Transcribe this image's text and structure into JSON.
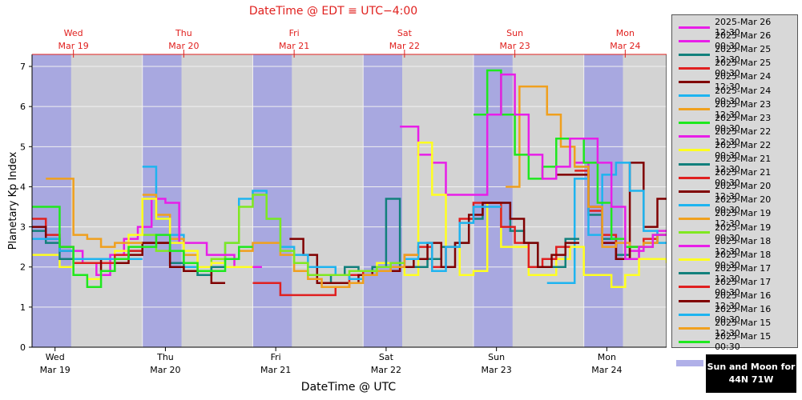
{
  "top_title": "DateTime @ EDT ≡ UTC−4:00",
  "bottom_title": "DateTime @ UTC",
  "sun_moon_label_line1": "Sun and Moon for",
  "sun_moon_label_line2": "44N 71W",
  "colors": {
    "plot_bg": "#d3d3d3",
    "night_band": "#a8a8e0",
    "top_axis": "#e0201e",
    "grid": "#f0f0f0"
  },
  "chart_data": {
    "type": "line",
    "title": "",
    "xlabel": "DateTime @ UTC",
    "ylabel": "Planetary Kp Index",
    "ylim": [
      0,
      7.3
    ],
    "yticks": [
      0,
      1,
      2,
      3,
      4,
      5,
      6,
      7
    ],
    "xlim_hours": [
      0,
      138
    ],
    "x_ticks_bottom": [
      {
        "day": "Wed",
        "date": "Mar 19",
        "hour": 5
      },
      {
        "day": "Thu",
        "date": "Mar 20",
        "hour": 29
      },
      {
        "day": "Fri",
        "date": "Mar 21",
        "hour": 53
      },
      {
        "day": "Sat",
        "date": "Mar 22",
        "hour": 77
      },
      {
        "day": "Sun",
        "date": "Mar 23",
        "hour": 101
      },
      {
        "day": "Mon",
        "date": "Mar 24",
        "hour": 125
      }
    ],
    "x_ticks_top": [
      {
        "day": "Wed",
        "date": "Mar 19",
        "hour": 9
      },
      {
        "day": "Thu",
        "date": "Mar 20",
        "hour": 33
      },
      {
        "day": "Fri",
        "date": "Mar 21",
        "hour": 57
      },
      {
        "day": "Sat",
        "date": "Mar 22",
        "hour": 81
      },
      {
        "day": "Sun",
        "date": "Mar 23",
        "hour": 105
      },
      {
        "day": "Mon",
        "date": "Mar 24",
        "hour": 129
      }
    ],
    "night_bands": [
      [
        0,
        8.5
      ],
      [
        24,
        32.5
      ],
      [
        48,
        56.5
      ],
      [
        72,
        80.5
      ],
      [
        96,
        104.5
      ],
      [
        120,
        128.5
      ]
    ],
    "legend_placement": "right",
    "series": [
      {
        "name": "2025-Mar 26 12:30",
        "color": "#e81ee8",
        "x": [
          118,
          121,
          124,
          127,
          130,
          133,
          136,
          138
        ],
        "y": [
          4.6,
          3.5,
          2.6,
          2.2,
          2.4,
          2.6,
          2.9,
          2.9
        ]
      },
      {
        "name": "2025-Mar 26 00:30",
        "color": "#e81ee8",
        "x": [],
        "y": []
      },
      {
        "name": "2025-Mar 25 12:30",
        "color": "#12807c",
        "x": [
          118,
          121,
          124,
          127,
          130,
          133,
          136,
          138
        ],
        "y": [
          4.5,
          3.3,
          2.7,
          2.3,
          2.5,
          2.6,
          2.8,
          2.8
        ]
      },
      {
        "name": "2025-Mar 25 00:30",
        "color": "#e02020",
        "x": [
          118,
          121,
          124,
          127,
          130,
          133,
          136,
          138
        ],
        "y": [
          4.4,
          3.4,
          2.8,
          2.2,
          2.5,
          2.7,
          2.8,
          2.8
        ]
      },
      {
        "name": "2025-Mar 24 12:30",
        "color": "#800000",
        "x": [
          114,
          118,
          121,
          124,
          127,
          130,
          133,
          136,
          138
        ],
        "y": [
          4.3,
          4.3,
          3.5,
          2.6,
          2.2,
          4.6,
          3.0,
          3.7,
          3.7
        ]
      },
      {
        "name": "2025-Mar 24 00:30",
        "color": "#1eb4f0",
        "x": [
          112,
          115,
          118,
          121,
          124,
          127,
          130,
          133,
          136,
          138
        ],
        "y": [
          1.6,
          1.6,
          4.2,
          2.8,
          4.3,
          4.6,
          3.9,
          2.9,
          2.6,
          2.6
        ]
      },
      {
        "name": "2025-Mar 23 12:30",
        "color": "#f0a01e",
        "x": [
          103,
          106,
          109,
          112,
          115,
          118,
          121,
          124,
          127,
          130,
          133,
          136,
          138
        ],
        "y": [
          4.0,
          6.5,
          6.5,
          5.8,
          5.0,
          4.5,
          3.5,
          2.5,
          2.6,
          2.5,
          2.6,
          2.8,
          2.8
        ]
      },
      {
        "name": "2025-Mar 23 00:30",
        "color": "#1ee81e",
        "x": [
          96,
          99,
          102,
          105,
          108,
          111,
          114,
          117,
          120,
          123,
          126,
          129,
          132,
          135,
          138
        ],
        "y": [
          5.8,
          6.9,
          5.8,
          4.8,
          4.2,
          4.5,
          5.2,
          5.2,
          4.6,
          3.6,
          2.7,
          2.5,
          2.5,
          2.8,
          2.8
        ]
      },
      {
        "name": "2025-Mar 22 12:30",
        "color": "#e81ee8",
        "x": [
          80,
          84,
          87,
          90,
          93,
          96,
          99,
          102,
          105,
          108,
          111,
          114,
          117,
          120,
          123,
          126,
          129,
          132,
          135,
          138
        ],
        "y": [
          5.5,
          4.8,
          4.6,
          3.8,
          3.8,
          3.8,
          5.8,
          6.8,
          5.8,
          4.8,
          4.2,
          4.5,
          5.2,
          5.2,
          4.6,
          3.5,
          2.2,
          2.5,
          2.8,
          2.8
        ]
      },
      {
        "name": "2025-Mar 22 00:30",
        "color": "#ffff20",
        "x": [
          72,
          75,
          78,
          81,
          84,
          87,
          90,
          93,
          96,
          99,
          102,
          105,
          108,
          111,
          114,
          117,
          120,
          123,
          126,
          129,
          132,
          135,
          138
        ],
        "y": [
          1.8,
          2.1,
          2.0,
          1.8,
          5.1,
          3.8,
          2.5,
          1.8,
          1.9,
          3.6,
          2.5,
          2.5,
          1.8,
          1.8,
          2.2,
          2.5,
          1.8,
          1.8,
          1.5,
          1.8,
          2.2,
          2.2,
          2.1
        ]
      },
      {
        "name": "2025-Mar 21 12:30",
        "color": "#12807c",
        "x": [
          62,
          65,
          68,
          71,
          74,
          77,
          80,
          83,
          86,
          89,
          92,
          95,
          98,
          101,
          104,
          107,
          110,
          113,
          116
        ],
        "y": [
          1.6,
          1.8,
          2.0,
          1.9,
          2.0,
          3.7,
          2.0,
          2.0,
          2.2,
          2.5,
          2.6,
          3.2,
          3.6,
          3.6,
          2.9,
          2.6,
          2.0,
          2.0,
          2.7
        ]
      },
      {
        "name": "2025-Mar 21 00:30",
        "color": "#e02020",
        "x": [
          48,
          51,
          54,
          57,
          60,
          63,
          66,
          69,
          72,
          75,
          78,
          81,
          84,
          87,
          90,
          93,
          96,
          99,
          102,
          105,
          108,
          111,
          114
        ],
        "y": [
          1.6,
          1.6,
          1.3,
          1.3,
          1.3,
          1.3,
          1.5,
          1.8,
          1.9,
          1.9,
          2.0,
          2.3,
          2.5,
          2.0,
          2.5,
          3.2,
          3.6,
          3.6,
          3.0,
          2.6,
          2.0,
          2.2,
          2.5
        ]
      },
      {
        "name": "2025-Mar 20 12:30",
        "color": "#800000",
        "x": [
          56,
          59,
          62,
          65,
          68,
          71,
          74,
          77,
          80,
          83,
          86,
          89,
          92,
          95,
          98,
          101,
          104,
          107,
          110,
          113,
          116
        ],
        "y": [
          2.7,
          2.3,
          1.6,
          1.6,
          1.6,
          1.8,
          1.9,
          1.9,
          2.0,
          2.2,
          2.6,
          2.0,
          2.6,
          3.3,
          3.6,
          3.6,
          3.2,
          2.6,
          2.0,
          2.3,
          2.6
        ]
      },
      {
        "name": "2025-Mar 20 00:30",
        "color": "#1eb4f0",
        "x": [
          24,
          27,
          30,
          33,
          36,
          39,
          42,
          45,
          48,
          51,
          54,
          57,
          60,
          63,
          66,
          69,
          72,
          75,
          78,
          81,
          84,
          87,
          90,
          93,
          96,
          99
        ],
        "y": [
          4.5,
          3.2,
          2.8,
          2.0,
          1.8,
          2.0,
          2.6,
          3.7,
          3.9,
          3.2,
          2.5,
          2.3,
          2.0,
          2.0,
          1.8,
          1.7,
          1.8,
          1.9,
          2.1,
          2.2,
          2.6,
          1.9,
          2.5,
          3.1,
          3.5,
          3.5
        ]
      },
      {
        "name": "2025-Mar 19 12:30",
        "color": "#f0a01e",
        "x": [
          24,
          27,
          30,
          33,
          36,
          39,
          42,
          45,
          48,
          51,
          54,
          57,
          60,
          63,
          66,
          69,
          72,
          75,
          78,
          81
        ],
        "y": [
          3.8,
          3.3,
          2.7,
          2.3,
          1.9,
          2.0,
          2.2,
          2.4,
          2.6,
          2.6,
          2.3,
          1.9,
          1.7,
          1.5,
          1.5,
          1.6,
          1.8,
          1.9,
          2.0,
          2.3
        ]
      },
      {
        "name": "2025-Mar 19 00:30",
        "color": "#80e820",
        "x": [
          24,
          27,
          30,
          33,
          36,
          39,
          42,
          45,
          48,
          51,
          54,
          57,
          60,
          63,
          66,
          69,
          72,
          75,
          78
        ],
        "y": [
          2.8,
          2.4,
          2.1,
          1.9,
          1.8,
          2.2,
          2.6,
          3.5,
          3.8,
          3.2,
          2.4,
          2.1,
          1.8,
          1.8,
          1.8,
          1.9,
          1.9,
          2.0,
          2.1
        ]
      },
      {
        "name": "2025-Mar 18 12:30",
        "color": "#e81ee8",
        "x": [
          8,
          11,
          14,
          17,
          20,
          23,
          26,
          29,
          32,
          35,
          38,
          41,
          44,
          47
        ],
        "y": [
          2.4,
          2.1,
          1.8,
          2.3,
          2.7,
          3.0,
          3.7,
          3.6,
          2.6,
          2.6,
          2.3,
          2.3,
          2.0,
          2.0
        ]
      },
      {
        "name": "2025-Mar 18 00:30",
        "color": "#ffff20",
        "x": [
          0,
          3,
          6,
          9,
          12,
          15,
          18,
          21,
          24,
          27,
          30,
          33,
          36,
          39,
          42,
          45
        ],
        "y": [
          2.3,
          2.3,
          2.0,
          1.8,
          1.7,
          1.9,
          2.4,
          2.8,
          3.7,
          3.2,
          2.6,
          2.4,
          2.0,
          2.1,
          2.0,
          2.0
        ]
      },
      {
        "name": "2025-Mar 17 12:30",
        "color": "#12807c",
        "x": [
          0,
          3,
          6,
          9,
          12,
          15,
          18,
          21,
          24,
          27,
          30,
          33,
          36,
          39
        ],
        "y": [
          2.9,
          2.6,
          2.2,
          2.2,
          2.2,
          2.2,
          2.2,
          2.4,
          2.6,
          2.6,
          2.1,
          1.9,
          1.8,
          2.0
        ]
      },
      {
        "name": "2025-Mar 17 00:30",
        "color": "#e02020",
        "x": [
          0,
          3,
          6,
          9,
          12,
          15,
          18,
          21,
          24,
          27
        ],
        "y": [
          3.2,
          2.8,
          2.5,
          2.1,
          2.1,
          2.1,
          2.3,
          2.4,
          2.6,
          2.6
        ]
      },
      {
        "name": "2025-Mar 16 12:30",
        "color": "#800000",
        "x": [
          0,
          3,
          6,
          9,
          12,
          15,
          18,
          21,
          24,
          27,
          30,
          33,
          36,
          39
        ],
        "y": [
          3.0,
          2.7,
          2.4,
          2.2,
          2.2,
          1.9,
          2.1,
          2.3,
          2.6,
          2.6,
          2.0,
          1.9,
          1.9,
          1.6
        ]
      },
      {
        "name": "2025-Mar 16 00:30",
        "color": "#1eb4f0",
        "x": [
          0,
          3,
          6,
          9,
          12,
          15,
          18,
          21
        ],
        "y": [
          2.7,
          2.7,
          2.4,
          2.2,
          2.2,
          2.2,
          2.2,
          2.2
        ]
      },
      {
        "name": "2025-Mar 15 12:30",
        "color": "#f0a01e",
        "x": [
          3,
          6,
          9,
          12,
          15,
          18,
          21
        ],
        "y": [
          4.2,
          4.2,
          2.8,
          2.7,
          2.5,
          2.6,
          2.6
        ]
      },
      {
        "name": "2025-Mar 15 00:30",
        "color": "#1ee81e",
        "x": [
          0,
          3,
          6,
          9,
          12,
          15,
          18,
          21,
          24,
          27,
          30,
          33,
          36,
          39,
          42,
          45
        ],
        "y": [
          3.5,
          3.5,
          2.5,
          1.8,
          1.5,
          1.9,
          2.2,
          2.5,
          2.5,
          2.8,
          2.4,
          2.1,
          1.9,
          1.9,
          2.2,
          2.5
        ]
      }
    ]
  }
}
